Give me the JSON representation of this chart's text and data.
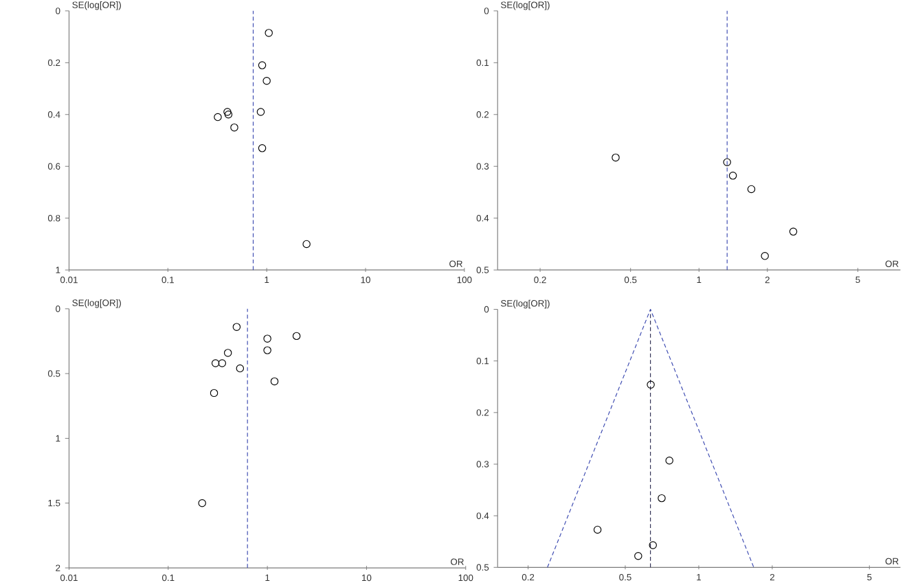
{
  "chart_data": [
    {
      "type": "scatter",
      "xlabel": "OR",
      "ylabel": "SE(log[OR])",
      "log": "x",
      "xlim": [
        0.01,
        100
      ],
      "ylim": [
        1,
        0
      ],
      "xticks": [
        0.01,
        0.1,
        1,
        10,
        100
      ],
      "yticks": [
        0,
        0.2,
        0.4,
        0.6,
        0.8,
        1
      ],
      "marker": "circle",
      "series": [
        {
          "color": "#000000",
          "x": [
            1.05,
            0.9,
            1.0,
            0.87,
            0.9,
            0.4,
            0.41,
            0.32,
            0.47,
            2.53
          ],
          "values": [
            0.085,
            0.21,
            0.27,
            0.39,
            0.53,
            0.39,
            0.4,
            0.41,
            0.45,
            0.9
          ]
        }
      ],
      "ref_lines": [
        {
          "axis": "x",
          "value": 0.73,
          "color": "#3a48b0",
          "line_style": "dashed"
        }
      ]
    },
    {
      "type": "scatter",
      "xlabel": "OR",
      "ylabel": "SE(log[OR])",
      "log": "x",
      "xlim": [
        0.13,
        7.7
      ],
      "ylim": [
        0.5,
        0
      ],
      "xticks": [
        0.2,
        0.5,
        1,
        2,
        5
      ],
      "yticks": [
        0,
        0.1,
        0.2,
        0.3,
        0.4,
        0.5
      ],
      "marker": "circle",
      "series": [
        {
          "color": "#000000",
          "x": [
            0.43,
            1.33,
            1.41,
            1.7,
            2.6,
            1.95
          ],
          "values": [
            0.283,
            0.292,
            0.318,
            0.344,
            0.426,
            0.473
          ]
        }
      ],
      "ref_lines": [
        {
          "axis": "x",
          "value": 1.33,
          "color": "#3a48b0",
          "line_style": "dashed"
        }
      ]
    },
    {
      "type": "scatter",
      "xlabel": "OR",
      "ylabel": "SE(log[OR])",
      "log": "x",
      "xlim": [
        0.01,
        100
      ],
      "ylim": [
        2,
        0
      ],
      "xticks": [
        0.01,
        0.1,
        1,
        10,
        100
      ],
      "yticks": [
        0,
        0.5,
        1,
        1.5,
        2
      ],
      "marker": "circle",
      "series": [
        {
          "color": "#000000",
          "x": [
            0.49,
            1.0,
            1.97,
            1.0,
            0.4,
            0.3,
            0.35,
            0.53,
            1.18,
            0.29,
            0.22
          ],
          "values": [
            0.14,
            0.23,
            0.21,
            0.32,
            0.34,
            0.42,
            0.42,
            0.46,
            0.56,
            0.65,
            1.5
          ]
        }
      ],
      "ref_lines": [
        {
          "axis": "x",
          "value": 0.63,
          "color": "#3a48b0",
          "line_style": "dashed"
        }
      ]
    },
    {
      "type": "scatter",
      "xlabel": "OR",
      "ylabel": "SE(log[OR])",
      "log": "x",
      "xlim": [
        0.15,
        6.7
      ],
      "ylim": [
        0.5,
        0
      ],
      "xticks": [
        0.2,
        0.5,
        1,
        2,
        5
      ],
      "yticks": [
        0,
        0.1,
        0.2,
        0.3,
        0.4,
        0.5
      ],
      "marker": "circle",
      "series": [
        {
          "color": "#000000",
          "x": [
            0.636,
            0.758,
            0.705,
            0.385,
            0.649,
            0.565
          ],
          "values": [
            0.146,
            0.293,
            0.366,
            0.427,
            0.457,
            0.478
          ]
        },
        {
          "type": "line",
          "color": "#3a48b0",
          "line_style": "dashed",
          "marker": "none",
          "x": [
            0.24,
            0.634,
            1.68
          ],
          "values": [
            0.5,
            0,
            0.5
          ]
        }
      ],
      "ref_lines": [
        {
          "axis": "x",
          "value": 0.634,
          "color": "#2a2a50",
          "line_style": "dashed"
        }
      ]
    }
  ]
}
